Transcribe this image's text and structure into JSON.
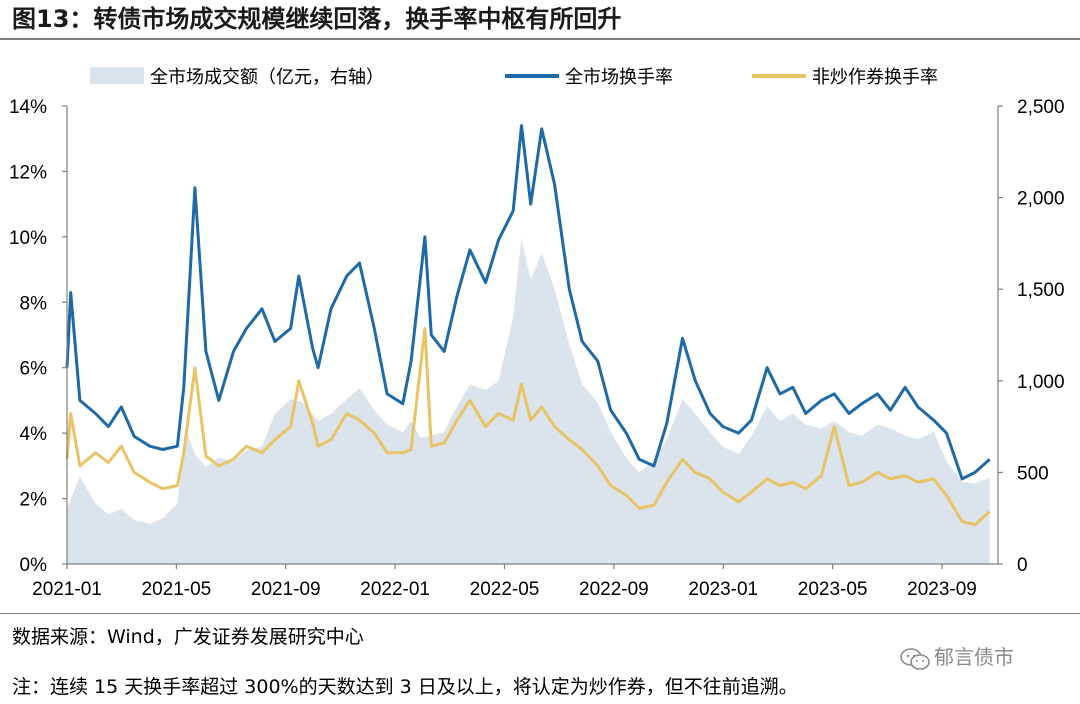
{
  "title": "图13：转债市场成交规模继续回落，换手率中枢有所回升",
  "source": "数据来源：Wind，广发证券发展研究中心",
  "note": "注：连续 15 天换手率超过 300%的天数达到 3 日及以上，将认定为炒作券，但不往前追溯。",
  "watermark": "郁言债市",
  "colors": {
    "volume_area": "#dbe3ec",
    "turnover_all": "#1f6aa6",
    "turnover_non_spec": "#e8c466",
    "axis": "#7f7f7f"
  },
  "chart_data": {
    "type": "area+line",
    "legend_position": "top",
    "grid": false,
    "x_tick_labels": [
      "2021-01",
      "2021-05",
      "2021-09",
      "2022-01",
      "2022-05",
      "2022-09",
      "2023-01",
      "2023-05",
      "2023-09"
    ],
    "y_left": {
      "min": 0,
      "max": 14,
      "tick_labels": [
        "0%",
        "2%",
        "4%",
        "6%",
        "8%",
        "10%",
        "12%",
        "14%"
      ]
    },
    "y_right": {
      "min": 0,
      "max": 2500,
      "tick_labels": [
        "0",
        "500",
        "1,000",
        "1,500",
        "2,000",
        "2,500"
      ]
    },
    "series": [
      {
        "name": "全市场成交额（亿元，右轴）",
        "axis": "right",
        "style": "area",
        "points": [
          [
            "2021-01",
            300
          ],
          [
            "2021-01-15",
            480
          ],
          [
            "2021-02",
            330
          ],
          [
            "2021-02-15",
            270
          ],
          [
            "2021-03",
            300
          ],
          [
            "2021-03-15",
            240
          ],
          [
            "2021-04",
            220
          ],
          [
            "2021-04-15",
            250
          ],
          [
            "2021-05",
            330
          ],
          [
            "2021-05-10",
            740
          ],
          [
            "2021-05-20",
            600
          ],
          [
            "2021-06",
            530
          ],
          [
            "2021-06-15",
            580
          ],
          [
            "2021-07",
            560
          ],
          [
            "2021-07-15",
            620
          ],
          [
            "2021-08",
            640
          ],
          [
            "2021-08-15",
            820
          ],
          [
            "2021-09",
            900
          ],
          [
            "2021-09-15",
            880
          ],
          [
            "2021-10",
            780
          ],
          [
            "2021-10-15",
            820
          ],
          [
            "2021-11",
            900
          ],
          [
            "2021-11-15",
            960
          ],
          [
            "2021-12",
            840
          ],
          [
            "2021-12-15",
            760
          ],
          [
            "2022-01",
            720
          ],
          [
            "2022-01-10",
            780
          ],
          [
            "2022-01-20",
            690
          ],
          [
            "2022-02",
            700
          ],
          [
            "2022-02-15",
            720
          ],
          [
            "2022-03",
            860
          ],
          [
            "2022-03-15",
            980
          ],
          [
            "2022-04",
            950
          ],
          [
            "2022-04-15",
            1000
          ],
          [
            "2022-05",
            1350
          ],
          [
            "2022-05-10",
            1780
          ],
          [
            "2022-05-20",
            1550
          ],
          [
            "2022-06",
            1700
          ],
          [
            "2022-06-15",
            1500
          ],
          [
            "2022-07",
            1200
          ],
          [
            "2022-07-15",
            980
          ],
          [
            "2022-08",
            880
          ],
          [
            "2022-08-15",
            720
          ],
          [
            "2022-09",
            580
          ],
          [
            "2022-09-15",
            500
          ],
          [
            "2022-10",
            560
          ],
          [
            "2022-10-15",
            680
          ],
          [
            "2022-11",
            900
          ],
          [
            "2022-11-15",
            820
          ],
          [
            "2022-12",
            720
          ],
          [
            "2022-12-15",
            640
          ],
          [
            "2023-01",
            600
          ],
          [
            "2023-01-15",
            700
          ],
          [
            "2023-02",
            860
          ],
          [
            "2023-02-15",
            780
          ],
          [
            "2023-03",
            820
          ],
          [
            "2023-03-15",
            760
          ],
          [
            "2023-04",
            740
          ],
          [
            "2023-04-15",
            780
          ],
          [
            "2023-05",
            720
          ],
          [
            "2023-05-15",
            700
          ],
          [
            "2023-06",
            760
          ],
          [
            "2023-06-15",
            740
          ],
          [
            "2023-07",
            700
          ],
          [
            "2023-07-15",
            680
          ],
          [
            "2023-08",
            720
          ],
          [
            "2023-08-15",
            560
          ],
          [
            "2023-09",
            450
          ],
          [
            "2023-09-15",
            440
          ],
          [
            "2023-10",
            470
          ]
        ]
      },
      {
        "name": "全市场换手率",
        "axis": "left",
        "style": "line",
        "points": [
          [
            "2021-01",
            6.0
          ],
          [
            "2021-01-05",
            8.3
          ],
          [
            "2021-01-15",
            5.0
          ],
          [
            "2021-02",
            4.6
          ],
          [
            "2021-02-15",
            4.2
          ],
          [
            "2021-03",
            4.8
          ],
          [
            "2021-03-15",
            3.9
          ],
          [
            "2021-04",
            3.6
          ],
          [
            "2021-04-15",
            3.5
          ],
          [
            "2021-05",
            3.6
          ],
          [
            "2021-05-08",
            5.4
          ],
          [
            "2021-05-20",
            11.5
          ],
          [
            "2021-06",
            6.5
          ],
          [
            "2021-06-15",
            5.0
          ],
          [
            "2021-07",
            6.5
          ],
          [
            "2021-07-15",
            7.2
          ],
          [
            "2021-08",
            7.8
          ],
          [
            "2021-08-15",
            6.8
          ],
          [
            "2021-09",
            7.2
          ],
          [
            "2021-09-10",
            8.8
          ],
          [
            "2021-09-25",
            6.6
          ],
          [
            "2021-10",
            6.0
          ],
          [
            "2021-10-15",
            7.8
          ],
          [
            "2021-11",
            8.8
          ],
          [
            "2021-11-15",
            9.2
          ],
          [
            "2021-12",
            7.2
          ],
          [
            "2021-12-15",
            5.2
          ],
          [
            "2022-01",
            4.9
          ],
          [
            "2022-01-10",
            6.2
          ],
          [
            "2022-01-25",
            10.0
          ],
          [
            "2022-02",
            7.0
          ],
          [
            "2022-02-15",
            6.5
          ],
          [
            "2022-03",
            8.2
          ],
          [
            "2022-03-15",
            9.6
          ],
          [
            "2022-04",
            8.6
          ],
          [
            "2022-04-15",
            9.9
          ],
          [
            "2022-05",
            10.8
          ],
          [
            "2022-05-10",
            13.4
          ],
          [
            "2022-05-20",
            11.0
          ],
          [
            "2022-06",
            13.3
          ],
          [
            "2022-06-15",
            11.6
          ],
          [
            "2022-07",
            8.4
          ],
          [
            "2022-07-15",
            6.8
          ],
          [
            "2022-08",
            6.2
          ],
          [
            "2022-08-15",
            4.7
          ],
          [
            "2022-09",
            4.0
          ],
          [
            "2022-09-15",
            3.2
          ],
          [
            "2022-10",
            3.0
          ],
          [
            "2022-10-15",
            4.3
          ],
          [
            "2022-11",
            6.9
          ],
          [
            "2022-11-15",
            5.6
          ],
          [
            "2022-12",
            4.6
          ],
          [
            "2022-12-15",
            4.2
          ],
          [
            "2023-01",
            4.0
          ],
          [
            "2023-01-15",
            4.4
          ],
          [
            "2023-02",
            6.0
          ],
          [
            "2023-02-15",
            5.2
          ],
          [
            "2023-03",
            5.4
          ],
          [
            "2023-03-15",
            4.6
          ],
          [
            "2023-04",
            5.0
          ],
          [
            "2023-04-15",
            5.2
          ],
          [
            "2023-05",
            4.6
          ],
          [
            "2023-05-15",
            4.9
          ],
          [
            "2023-06",
            5.2
          ],
          [
            "2023-06-15",
            4.7
          ],
          [
            "2023-07",
            5.4
          ],
          [
            "2023-07-15",
            4.8
          ],
          [
            "2023-08",
            4.4
          ],
          [
            "2023-08-15",
            4.0
          ],
          [
            "2023-09",
            2.6
          ],
          [
            "2023-09-15",
            2.8
          ],
          [
            "2023-10",
            3.2
          ]
        ]
      },
      {
        "name": "非炒作券换手率",
        "axis": "left",
        "style": "line",
        "points": [
          [
            "2021-01",
            3.2
          ],
          [
            "2021-01-05",
            4.6
          ],
          [
            "2021-01-15",
            3.0
          ],
          [
            "2021-02",
            3.4
          ],
          [
            "2021-02-15",
            3.1
          ],
          [
            "2021-03",
            3.6
          ],
          [
            "2021-03-15",
            2.8
          ],
          [
            "2021-04",
            2.5
          ],
          [
            "2021-04-15",
            2.3
          ],
          [
            "2021-05",
            2.4
          ],
          [
            "2021-05-08",
            3.4
          ],
          [
            "2021-05-20",
            6.0
          ],
          [
            "2021-06",
            3.3
          ],
          [
            "2021-06-15",
            3.0
          ],
          [
            "2021-07",
            3.2
          ],
          [
            "2021-07-15",
            3.6
          ],
          [
            "2021-08",
            3.4
          ],
          [
            "2021-08-15",
            3.8
          ],
          [
            "2021-09",
            4.2
          ],
          [
            "2021-09-10",
            5.6
          ],
          [
            "2021-09-25",
            4.3
          ],
          [
            "2021-10",
            3.6
          ],
          [
            "2021-10-15",
            3.8
          ],
          [
            "2021-11",
            4.6
          ],
          [
            "2021-11-15",
            4.4
          ],
          [
            "2021-12",
            4.0
          ],
          [
            "2021-12-15",
            3.4
          ],
          [
            "2022-01",
            3.4
          ],
          [
            "2022-01-10",
            3.5
          ],
          [
            "2022-01-25",
            7.2
          ],
          [
            "2022-02",
            3.6
          ],
          [
            "2022-02-15",
            3.7
          ],
          [
            "2022-03",
            4.4
          ],
          [
            "2022-03-15",
            5.0
          ],
          [
            "2022-04",
            4.2
          ],
          [
            "2022-04-15",
            4.6
          ],
          [
            "2022-05",
            4.4
          ],
          [
            "2022-05-10",
            5.5
          ],
          [
            "2022-05-20",
            4.4
          ],
          [
            "2022-06",
            4.8
          ],
          [
            "2022-06-15",
            4.2
          ],
          [
            "2022-07",
            3.8
          ],
          [
            "2022-07-15",
            3.5
          ],
          [
            "2022-08",
            3.0
          ],
          [
            "2022-08-15",
            2.4
          ],
          [
            "2022-09",
            2.1
          ],
          [
            "2022-09-15",
            1.7
          ],
          [
            "2022-10",
            1.8
          ],
          [
            "2022-10-15",
            2.5
          ],
          [
            "2022-11",
            3.2
          ],
          [
            "2022-11-15",
            2.8
          ],
          [
            "2022-12",
            2.6
          ],
          [
            "2022-12-15",
            2.2
          ],
          [
            "2023-01",
            1.9
          ],
          [
            "2023-01-15",
            2.2
          ],
          [
            "2023-02",
            2.6
          ],
          [
            "2023-02-15",
            2.4
          ],
          [
            "2023-03",
            2.5
          ],
          [
            "2023-03-15",
            2.3
          ],
          [
            "2023-04",
            2.7
          ],
          [
            "2023-04-15",
            4.2
          ],
          [
            "2023-05",
            2.4
          ],
          [
            "2023-05-15",
            2.5
          ],
          [
            "2023-06",
            2.8
          ],
          [
            "2023-06-15",
            2.6
          ],
          [
            "2023-07",
            2.7
          ],
          [
            "2023-07-15",
            2.5
          ],
          [
            "2023-08",
            2.6
          ],
          [
            "2023-08-15",
            2.1
          ],
          [
            "2023-09",
            1.3
          ],
          [
            "2023-09-15",
            1.2
          ],
          [
            "2023-10",
            1.6
          ]
        ]
      }
    ]
  }
}
